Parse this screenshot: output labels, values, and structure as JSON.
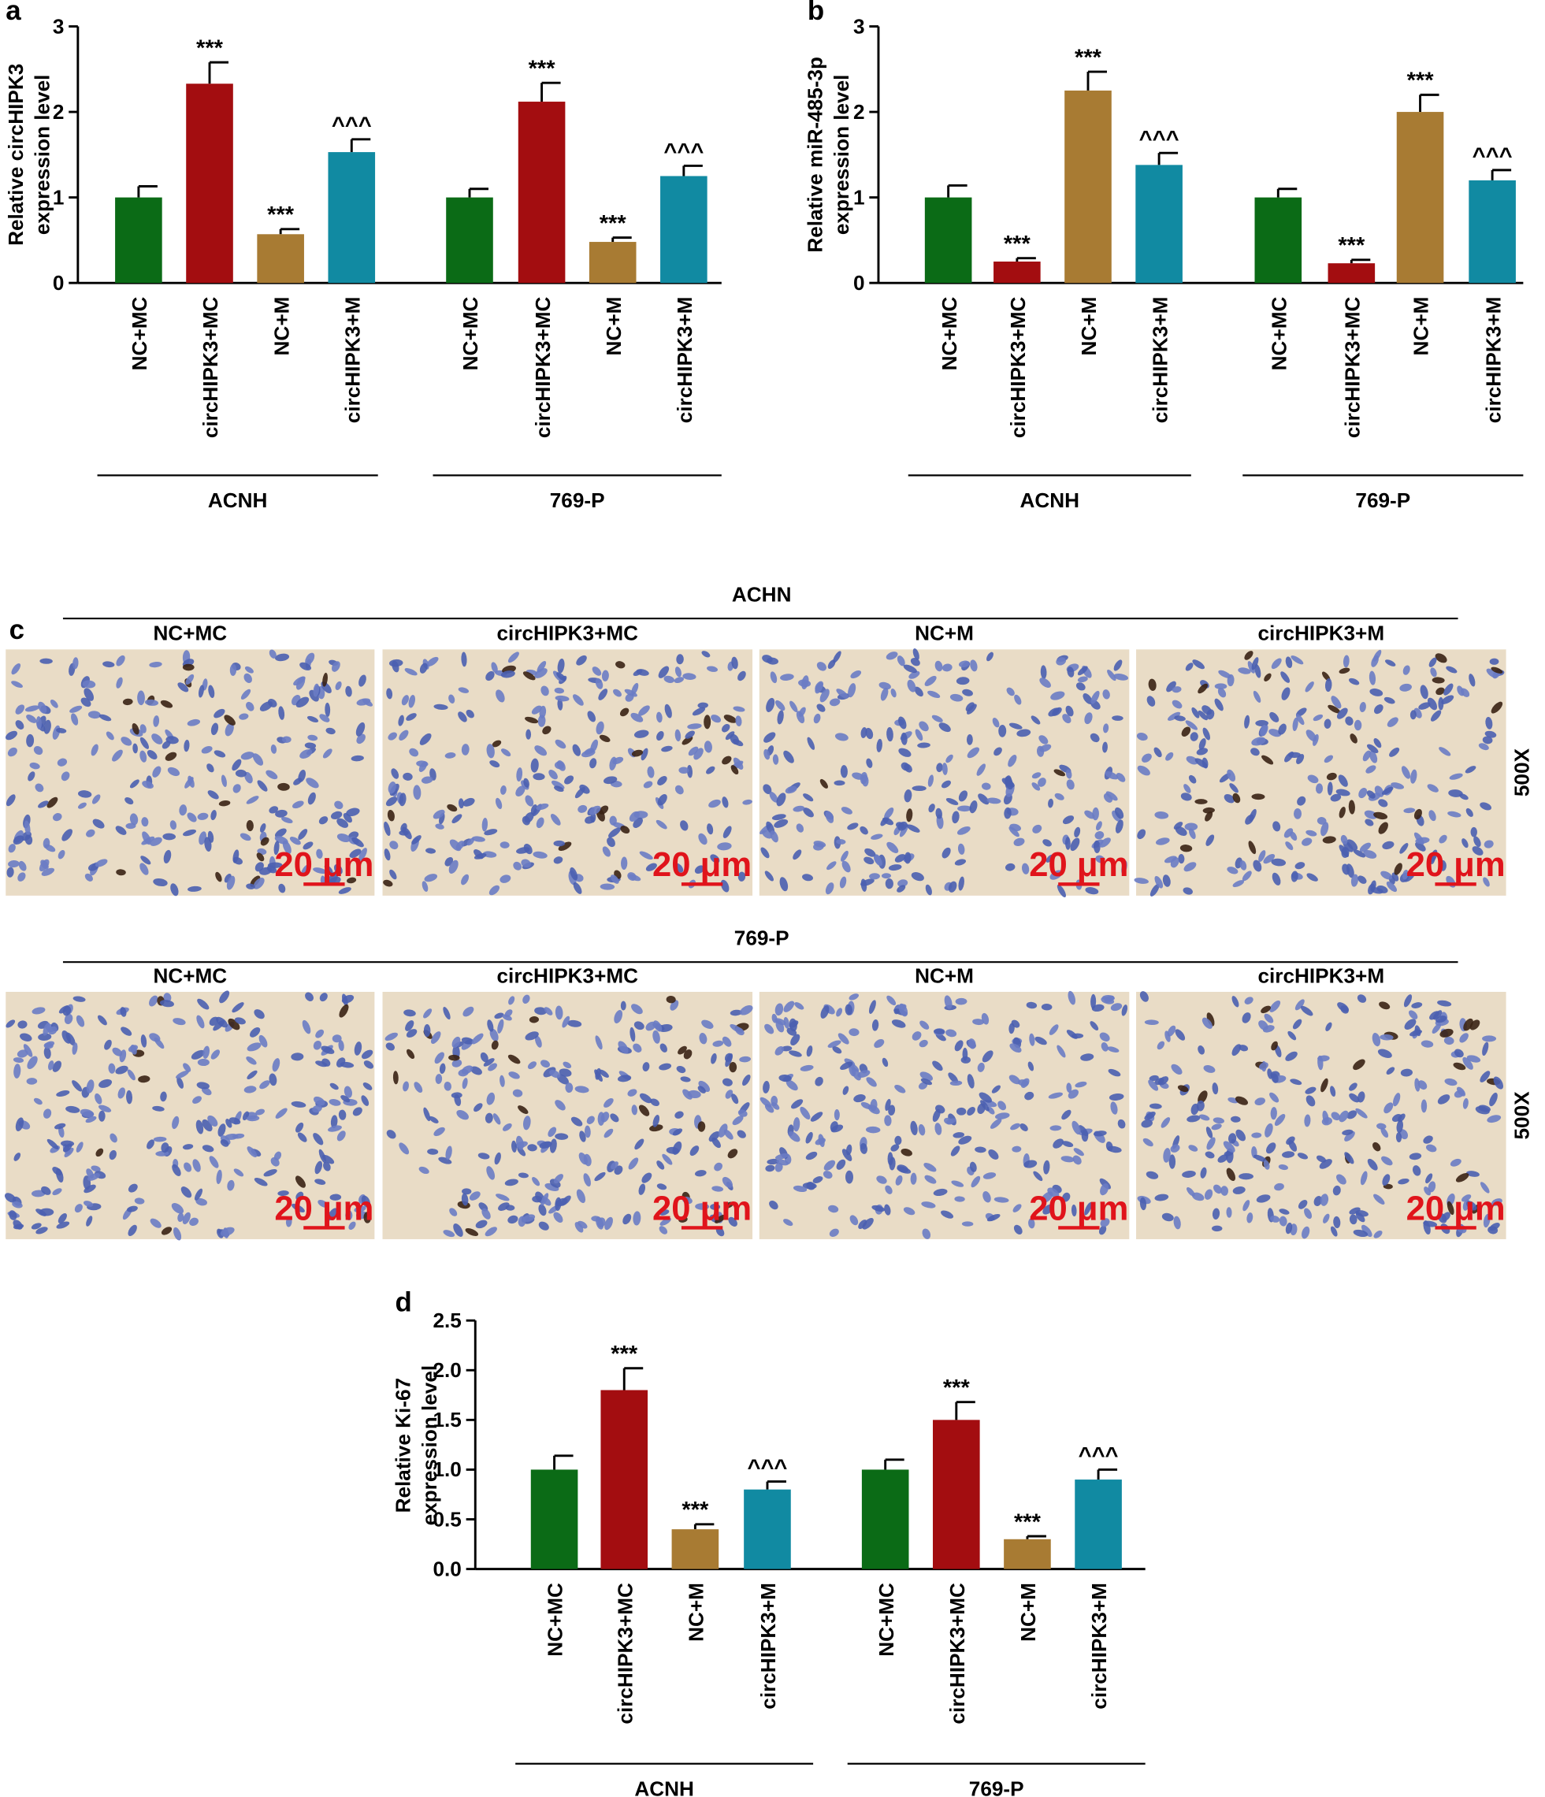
{
  "chart_data": [
    {
      "type": "bar",
      "panel": "a",
      "ylabel": [
        "Relative circHIPK3",
        "expression level"
      ],
      "categories": [
        "NC+MC",
        "circHIPK3+MC",
        "NC+M",
        "circHIPK3+M",
        "NC+MC",
        "circHIPK3+MC",
        "NC+M",
        "circHIPK3+M"
      ],
      "groups": [
        "ACNH",
        "769-P"
      ],
      "values": [
        1.0,
        2.33,
        0.57,
        1.53,
        1.0,
        2.12,
        0.48,
        1.25
      ],
      "errors": [
        0.13,
        0.25,
        0.06,
        0.15,
        0.1,
        0.22,
        0.05,
        0.12
      ],
      "annotations": [
        null,
        "***",
        "***",
        "^^^",
        null,
        "***",
        "***",
        "^^^"
      ],
      "colors": [
        "#0b6b16",
        "#a30d10",
        "#a87b33",
        "#118aa2",
        "#0b6b16",
        "#a30d10",
        "#a87b33",
        "#118aa2"
      ],
      "ylim": [
        0,
        3
      ],
      "yticks": [
        0,
        1,
        2,
        3
      ]
    },
    {
      "type": "bar",
      "panel": "b",
      "ylabel": [
        "Relative miR-485-3p",
        "expression level"
      ],
      "categories": [
        "NC+MC",
        "circHIPK3+MC",
        "NC+M",
        "circHIPK3+M",
        "NC+MC",
        "circHIPK3+MC",
        "NC+M",
        "circHIPK3+M"
      ],
      "groups": [
        "ACNH",
        "769-P"
      ],
      "values": [
        1.0,
        0.25,
        2.25,
        1.38,
        1.0,
        0.23,
        2.0,
        1.2
      ],
      "errors": [
        0.14,
        0.04,
        0.22,
        0.14,
        0.1,
        0.04,
        0.2,
        0.12
      ],
      "annotations": [
        null,
        "***",
        "***",
        "^^^",
        null,
        "***",
        "***",
        "^^^"
      ],
      "colors": [
        "#0b6b16",
        "#a30d10",
        "#a87b33",
        "#118aa2",
        "#0b6b16",
        "#a30d10",
        "#a87b33",
        "#118aa2"
      ],
      "ylim": [
        0,
        3
      ],
      "yticks": [
        0,
        1,
        2,
        3
      ]
    },
    {
      "type": "bar",
      "panel": "d",
      "ylabel": [
        "Relative Ki-67",
        "expression level"
      ],
      "categories": [
        "NC+MC",
        "circHIPK3+MC",
        "NC+M",
        "circHIPK3+M",
        "NC+MC",
        "circHIPK3+MC",
        "NC+M",
        "circHIPK3+M"
      ],
      "groups": [
        "ACNH",
        "769-P"
      ],
      "values": [
        1.0,
        1.8,
        0.4,
        0.8,
        1.0,
        1.5,
        0.3,
        0.9
      ],
      "errors": [
        0.14,
        0.22,
        0.05,
        0.08,
        0.1,
        0.18,
        0.03,
        0.1
      ],
      "annotations": [
        null,
        "***",
        "***",
        "^^^",
        null,
        "***",
        "***",
        "^^^"
      ],
      "colors": [
        "#0b6b16",
        "#a30d10",
        "#a87b33",
        "#118aa2",
        "#0b6b16",
        "#a30d10",
        "#a87b33",
        "#118aa2"
      ],
      "ylim": [
        0,
        2.5
      ],
      "yticks": [
        {
          "value": 0,
          "label": "0.0"
        },
        0.5,
        {
          "value": 1,
          "label": "1.0"
        },
        1.5,
        {
          "value": 2,
          "label": "2.0"
        },
        2.5
      ]
    }
  ],
  "panel_c": {
    "panel": "c",
    "rows": [
      {
        "title": "ACHN",
        "columns": [
          "NC+MC",
          "circHIPK3+MC",
          "NC+M",
          "circHIPK3+M"
        ],
        "scale_bars": [
          "20 μm",
          "20 μm",
          "20 μm",
          "20 μm"
        ],
        "magnification": "500X"
      },
      {
        "title": "769-P",
        "columns": [
          "NC+MC",
          "circHIPK3+MC",
          "NC+M",
          "circHIPK3+M"
        ],
        "scale_bars": [
          "20 μm",
          "20 μm",
          "20 μm",
          "20 μm"
        ],
        "magnification": "500X"
      }
    ]
  }
}
